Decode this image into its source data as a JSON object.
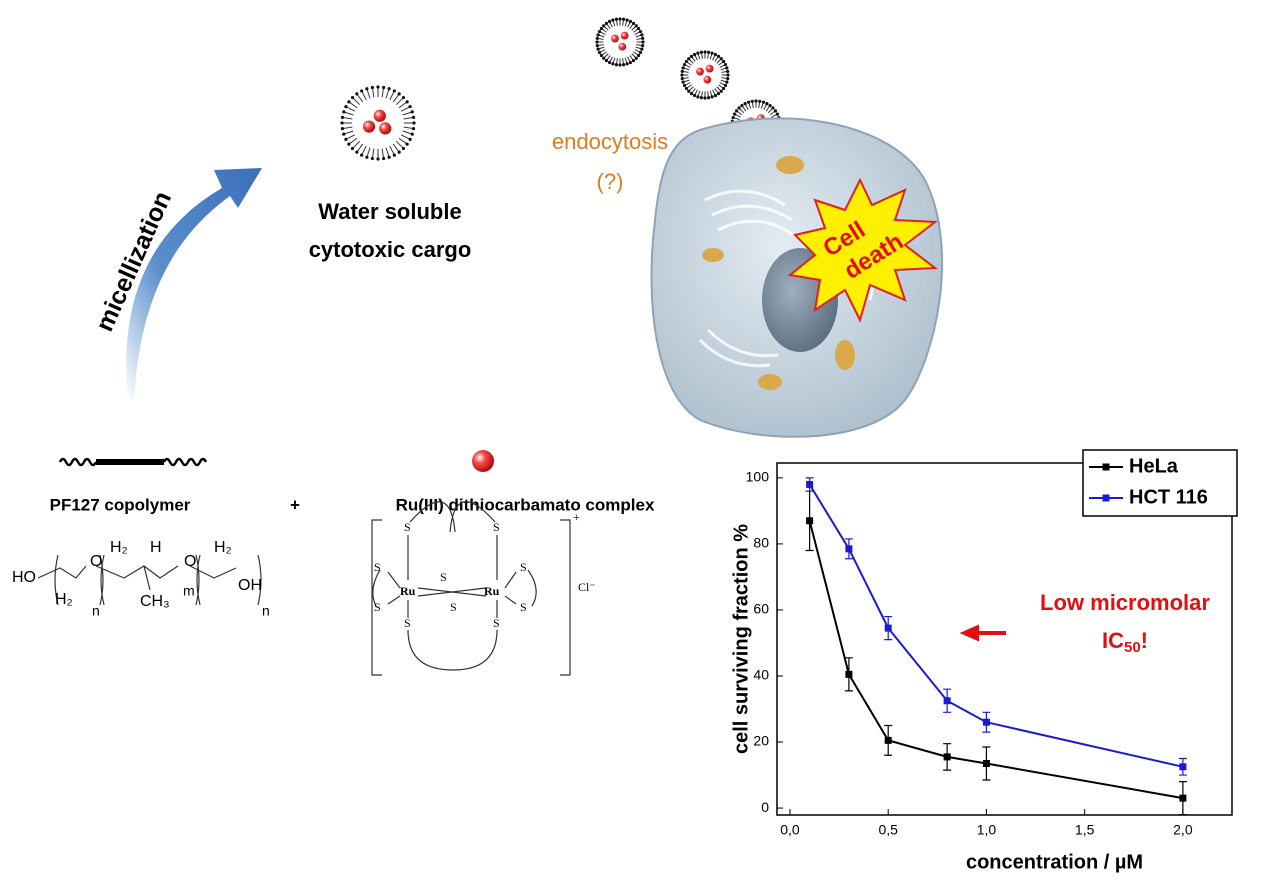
{
  "labels": {
    "micellization": "micellization",
    "water_line1": "Water soluble",
    "water_line2": "cytotoxic cargo",
    "endocytosis": "endocytosis",
    "endocytosis_q": "(?)",
    "cell_line1": "Cell",
    "cell_line2": "death",
    "copolymer": "PF127 copolymer",
    "plus": "+",
    "complex": "Ru(III) dithiocarbamato complex"
  },
  "formula_tokens": [
    "HO",
    "H₂",
    "O",
    "H₂",
    "H",
    "CH₃",
    "m",
    "O",
    "H₂",
    "OH",
    "n",
    "n"
  ],
  "complex_atoms": [
    "S",
    "S",
    "S",
    "S",
    "Ru",
    "S",
    "S",
    "Ru",
    "S",
    "S",
    "S",
    "S",
    "Cl⁻",
    "+"
  ],
  "chart_data": {
    "type": "line",
    "x_label": "concentration / µM",
    "y_label": "cell surviving fraction %",
    "x": [
      0.1,
      0.3,
      0.5,
      0.8,
      1.0,
      2.0
    ],
    "xlim": [
      -0.066,
      2.25
    ],
    "xticks": [
      {
        "value": 0,
        "label": "0,0"
      },
      {
        "value": 0.5,
        "label": "0,5"
      },
      {
        "value": 1,
        "label": "1,0"
      },
      {
        "value": 1.5,
        "label": "1,5"
      },
      {
        "value": 2,
        "label": "2,0"
      }
    ],
    "ylim": [
      -2.1,
      104.5
    ],
    "yticks": [
      0,
      20,
      40,
      60,
      80,
      100
    ],
    "series": [
      {
        "name": "HeLa",
        "color": "#000000",
        "values": [
          87,
          40.5,
          20.5,
          15.5,
          13.5,
          3
        ],
        "errors": [
          9,
          5,
          4.5,
          4,
          5,
          5
        ]
      },
      {
        "name": "HCT 116",
        "color": "#1a1ad4",
        "values": [
          98,
          78.5,
          54.5,
          32.5,
          26,
          12.5
        ],
        "errors": [
          2,
          3,
          3.5,
          3.5,
          3,
          2.5
        ]
      }
    ],
    "legend": "top-right",
    "annotation": {
      "line1": "Low micromolar",
      "ic": "IC",
      "sub": "50",
      "bang": "!"
    }
  }
}
